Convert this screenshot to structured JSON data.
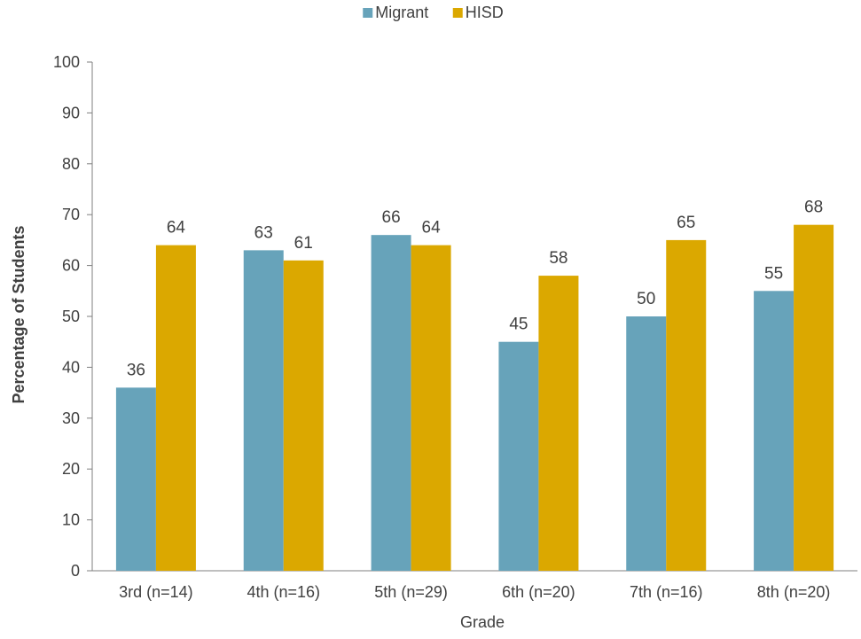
{
  "chart_data": {
    "type": "bar",
    "title": "",
    "xlabel": "Grade",
    "ylabel": "Percentage of Students",
    "ylim": [
      0,
      100
    ],
    "yticks": [
      0,
      10,
      20,
      30,
      40,
      50,
      60,
      70,
      80,
      90,
      100
    ],
    "categories": [
      "3rd (n=14)",
      "4th (n=16)",
      "5th (n=29)",
      "6th (n=20)",
      "7th (n=16)",
      "8th (n=20)"
    ],
    "series": [
      {
        "name": "Migrant",
        "color": "#67A3BA",
        "values": [
          36,
          63,
          66,
          45,
          50,
          55
        ]
      },
      {
        "name": "HISD",
        "color": "#DBA800",
        "values": [
          64,
          61,
          64,
          58,
          65,
          68
        ]
      }
    ],
    "legend_position": "top-center",
    "grid": false,
    "data_labels": true
  }
}
